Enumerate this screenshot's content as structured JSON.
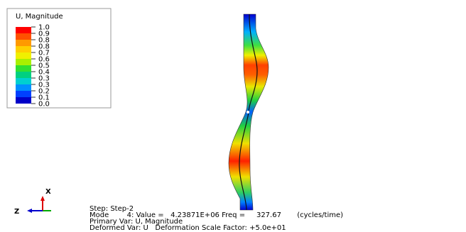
{
  "legend": {
    "title": "U, Magnitude",
    "labels": [
      "1.0",
      "0.9",
      "0.8",
      "0.8",
      "0.7",
      "0.6",
      "0.5",
      "0.4",
      "0.3",
      "0.3",
      "0.2",
      "0.1",
      "0.0"
    ]
  },
  "triad": {
    "x_label": "X",
    "z_label": "Z"
  },
  "status": {
    "step": "Step: Step-2",
    "mode": "Mode        4: Value =   4.23871E+06 Freq =     327.67       (cycles/time)",
    "primary": "Primary Var: U, Magnitude",
    "deformed": "Deformed Var: U   Deformation Scale Factor: +5.0e+01"
  }
}
